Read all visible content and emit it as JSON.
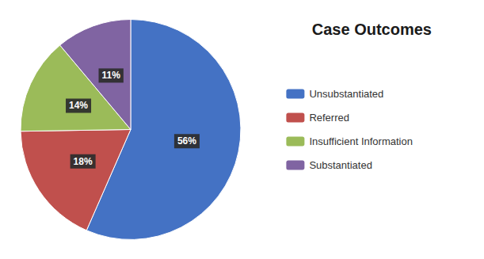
{
  "chart_data": {
    "type": "pie",
    "title": "Case Outcomes",
    "categories": [
      "Unsubstantiated",
      "Referred",
      "Insufficient Information",
      "Substantiated"
    ],
    "values": [
      56,
      18,
      14,
      11
    ],
    "value_labels": [
      "56%",
      "18%",
      "14%",
      "11%"
    ],
    "colors": [
      "#4472C4",
      "#C0504D",
      "#9BBB59",
      "#8064A2"
    ],
    "data_labels": true,
    "legend": "right"
  }
}
